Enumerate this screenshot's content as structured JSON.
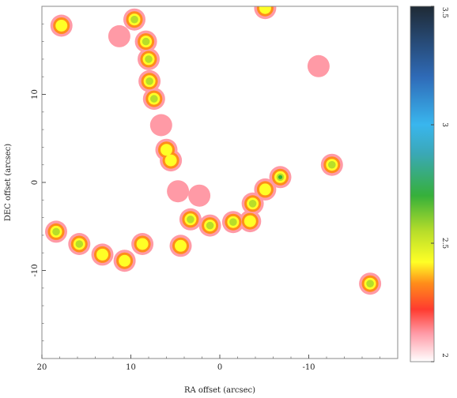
{
  "chart_data": {
    "type": "heatmap",
    "title": "",
    "xlabel": "RA offset (arcsec)",
    "ylabel": "DEC offset (arcsec)",
    "xlim": [
      20,
      -20
    ],
    "ylim": [
      -20,
      20
    ],
    "x_ticks": [
      {
        "value": 20,
        "label": "20"
      },
      {
        "value": 10,
        "label": "10"
      },
      {
        "value": 0,
        "label": "0"
      },
      {
        "value": -10,
        "label": "-10"
      }
    ],
    "y_ticks": [
      {
        "value": 10,
        "label": "10"
      },
      {
        "value": 0,
        "label": "0"
      },
      {
        "value": -10,
        "label": "-10"
      }
    ],
    "colorbar": {
      "range": [
        2.0,
        3.5
      ],
      "ticks": [
        {
          "value": 2.0,
          "label": "2"
        },
        {
          "value": 2.5,
          "label": "2.5"
        },
        {
          "value": 3.0,
          "label": "3"
        },
        {
          "value": 3.5,
          "label": "3.5"
        }
      ],
      "stops": [
        {
          "value": 2.0,
          "color": "#ffffff"
        },
        {
          "value": 2.12,
          "color": "#ff9aa6"
        },
        {
          "value": 2.22,
          "color": "#ff3b2f"
        },
        {
          "value": 2.33,
          "color": "#ff8c1a"
        },
        {
          "value": 2.42,
          "color": "#ffff26"
        },
        {
          "value": 2.55,
          "color": "#b7dd2a"
        },
        {
          "value": 2.7,
          "color": "#36b03a"
        },
        {
          "value": 2.88,
          "color": "#3aa8b8"
        },
        {
          "value": 3.0,
          "color": "#39b6ee"
        },
        {
          "value": 3.2,
          "color": "#2f6bb8"
        },
        {
          "value": 3.5,
          "color": "#1f2a35"
        }
      ]
    },
    "features": [
      {
        "x": 17.8,
        "y": 17.8,
        "peak": 2.55
      },
      {
        "x": 9.6,
        "y": 18.5,
        "peak": 2.65
      },
      {
        "x": 11.3,
        "y": 16.6,
        "peak": 2.3
      },
      {
        "x": 8.3,
        "y": 16.0,
        "peak": 2.6
      },
      {
        "x": 8.0,
        "y": 14.0,
        "peak": 2.6
      },
      {
        "x": 7.9,
        "y": 11.5,
        "peak": 2.7
      },
      {
        "x": 7.4,
        "y": 9.5,
        "peak": 2.6
      },
      {
        "x": 6.6,
        "y": 6.5,
        "peak": 2.3
      },
      {
        "x": 6.0,
        "y": 3.7,
        "peak": 2.45
      },
      {
        "x": 5.5,
        "y": 2.5,
        "peak": 2.55
      },
      {
        "x": 4.7,
        "y": -1.0,
        "peak": 2.25
      },
      {
        "x": 5.4,
        "y": -2.2,
        "peak": 2.15
      },
      {
        "x": 3.3,
        "y": -4.2,
        "peak": 2.65
      },
      {
        "x": 1.1,
        "y": -4.9,
        "peak": 2.65
      },
      {
        "x": -1.5,
        "y": -4.5,
        "peak": 2.65
      },
      {
        "x": -3.4,
        "y": -4.4,
        "peak": 2.55
      },
      {
        "x": -3.7,
        "y": -2.4,
        "peak": 2.65
      },
      {
        "x": -6.8,
        "y": 0.6,
        "peak": 2.8
      },
      {
        "x": -5.1,
        "y": -0.8,
        "peak": 2.55
      },
      {
        "x": 8.7,
        "y": -7.0,
        "peak": 2.5
      },
      {
        "x": 4.4,
        "y": -7.2,
        "peak": 2.55
      },
      {
        "x": 2.3,
        "y": -1.5,
        "peak": 2.2
      },
      {
        "x": 18.4,
        "y": -5.6,
        "peak": 2.6
      },
      {
        "x": 15.8,
        "y": -7.0,
        "peak": 2.65
      },
      {
        "x": 13.2,
        "y": -8.2,
        "peak": 2.55
      },
      {
        "x": 10.7,
        "y": -8.9,
        "peak": 2.45
      },
      {
        "x": -5.1,
        "y": 19.8,
        "peak": 2.5
      },
      {
        "x": -11.1,
        "y": 13.2,
        "peak": 2.25
      },
      {
        "x": -12.6,
        "y": 2.0,
        "peak": 2.65
      },
      {
        "x": -16.9,
        "y": -11.5,
        "peak": 2.7
      }
    ]
  }
}
